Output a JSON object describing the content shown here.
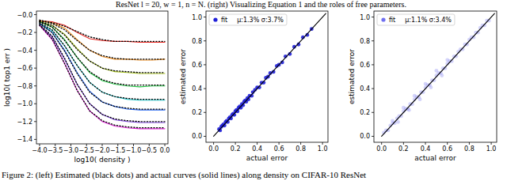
{
  "captions": {
    "top": "ResNet l = 20, w = 1, n = N. (right) Visualizing Equation 1 and the roles of free parameters.",
    "bottom": "Figure 2: (left) Estimated (black dots) and actual curves (solid lines) along density on CIFAR-10 ResNet"
  },
  "chart_data": [
    {
      "type": "line",
      "xlabel": "log10( density )",
      "ylabel": "log10( top1 err )",
      "xlim": [
        -4.1,
        0.1
      ],
      "ylim": [
        -1.45,
        0.04
      ],
      "xticks": [
        {
          "value": -4.0,
          "label": "−4.0"
        },
        {
          "value": -3.5,
          "label": "−3.5"
        },
        {
          "value": -3.0,
          "label": "−3.0"
        },
        {
          "value": -2.5,
          "label": "−2.5"
        },
        {
          "value": -2.0,
          "label": "−2.0"
        },
        {
          "value": -1.5,
          "label": "−1.5"
        },
        {
          "value": -1.0,
          "label": "−1.0"
        },
        {
          "value": -0.5,
          "label": "−0.5"
        },
        {
          "value": 0.0,
          "label": "0.0"
        }
      ],
      "yticks": [
        {
          "value": 0.0,
          "label": "−0.0"
        },
        {
          "value": -0.2,
          "label": "−0.2"
        },
        {
          "value": -0.4,
          "label": "−0.4"
        },
        {
          "value": -0.6,
          "label": "−0.6"
        },
        {
          "value": -0.8,
          "label": "−0.8"
        },
        {
          "value": -1.0,
          "label": "−1.0"
        },
        {
          "value": -1.2,
          "label": "−1.2"
        },
        {
          "value": -1.4,
          "label": "−1.4"
        }
      ],
      "x": [
        -4.0,
        -3.6,
        -3.2,
        -2.8,
        -2.4,
        -2.0,
        -1.6,
        -1.2,
        -0.8,
        -0.4,
        0.0
      ],
      "series": [
        {
          "color": "#e8251f",
          "line_style": "solid",
          "values": [
            -0.07,
            -0.08,
            -0.12,
            -0.2,
            -0.27,
            -0.29,
            -0.3,
            -0.3,
            -0.31,
            -0.31,
            -0.31
          ]
        },
        {
          "color": "#f08c1c",
          "line_style": "solid",
          "values": [
            -0.07,
            -0.09,
            -0.15,
            -0.28,
            -0.4,
            -0.47,
            -0.5,
            -0.5,
            -0.51,
            -0.51,
            -0.5
          ]
        },
        {
          "color": "#a8c41c",
          "line_style": "solid",
          "values": [
            -0.08,
            -0.12,
            -0.22,
            -0.38,
            -0.52,
            -0.6,
            -0.64,
            -0.65,
            -0.66,
            -0.66,
            -0.66
          ]
        },
        {
          "color": "#22c244",
          "line_style": "solid",
          "values": [
            -0.08,
            -0.14,
            -0.28,
            -0.48,
            -0.65,
            -0.74,
            -0.78,
            -0.8,
            -0.81,
            -0.8,
            -0.8
          ]
        },
        {
          "color": "#1cc4c8",
          "line_style": "solid",
          "values": [
            -0.1,
            -0.18,
            -0.35,
            -0.57,
            -0.76,
            -0.87,
            -0.92,
            -0.95,
            -0.96,
            -0.96,
            -0.96
          ]
        },
        {
          "color": "#2464f0",
          "line_style": "solid",
          "values": [
            -0.1,
            -0.2,
            -0.4,
            -0.65,
            -0.86,
            -0.98,
            -1.03,
            -1.06,
            -1.07,
            -1.07,
            -1.07
          ]
        },
        {
          "color": "#7a3ee0",
          "line_style": "solid",
          "values": [
            -0.12,
            -0.25,
            -0.5,
            -0.78,
            -1.0,
            -1.12,
            -1.18,
            -1.2,
            -1.21,
            -1.21,
            -1.21
          ]
        },
        {
          "color": "#e020d8",
          "line_style": "solid",
          "values": [
            -0.12,
            -0.28,
            -0.55,
            -0.85,
            -1.08,
            -1.2,
            -1.25,
            -1.27,
            -1.28,
            -1.28,
            -1.28
          ]
        },
        {
          "color": "#000000",
          "line_style": "dotted",
          "values": [
            -0.06,
            -0.09,
            -0.13,
            -0.19,
            -0.25,
            -0.28,
            -0.3,
            -0.3,
            -0.3,
            -0.3,
            -0.3
          ]
        },
        {
          "color": "#000000",
          "line_style": "dotted",
          "values": [
            -0.07,
            -0.1,
            -0.17,
            -0.29,
            -0.4,
            -0.46,
            -0.49,
            -0.5,
            -0.5,
            -0.5,
            -0.5
          ]
        },
        {
          "color": "#000000",
          "line_style": "dotted",
          "values": [
            -0.08,
            -0.12,
            -0.23,
            -0.39,
            -0.52,
            -0.6,
            -0.63,
            -0.64,
            -0.65,
            -0.65,
            -0.65
          ]
        },
        {
          "color": "#000000",
          "line_style": "dotted",
          "values": [
            -0.08,
            -0.14,
            -0.29,
            -0.48,
            -0.64,
            -0.73,
            -0.77,
            -0.79,
            -0.79,
            -0.79,
            -0.79
          ]
        },
        {
          "color": "#000000",
          "line_style": "dotted",
          "values": [
            -0.09,
            -0.17,
            -0.35,
            -0.57,
            -0.76,
            -0.87,
            -0.92,
            -0.94,
            -0.95,
            -0.95,
            -0.95
          ]
        },
        {
          "color": "#000000",
          "line_style": "dotted",
          "values": [
            -0.1,
            -0.2,
            -0.41,
            -0.66,
            -0.87,
            -0.98,
            -1.03,
            -1.05,
            -1.06,
            -1.06,
            -1.06
          ]
        },
        {
          "color": "#000000",
          "line_style": "dotted",
          "values": [
            -0.11,
            -0.24,
            -0.49,
            -0.78,
            -1.0,
            -1.12,
            -1.17,
            -1.19,
            -1.2,
            -1.2,
            -1.2
          ]
        },
        {
          "color": "#000000",
          "line_style": "dotted",
          "values": [
            -0.12,
            -0.27,
            -0.55,
            -0.85,
            -1.08,
            -1.19,
            -1.24,
            -1.26,
            -1.27,
            -1.27,
            -1.27
          ]
        }
      ]
    },
    {
      "type": "scatter",
      "xlabel": "actual error",
      "ylabel": "estimated error",
      "legend": "upper left",
      "annotations": [
        "μ:1.3% σ:3.7%"
      ],
      "xlim": [
        -0.07,
        1.05
      ],
      "ylim": [
        -0.05,
        1.05
      ],
      "xticks": [
        {
          "value": 0.0,
          "label": "0.0"
        },
        0.2,
        0.4,
        0.6,
        0.8,
        {
          "value": 1.0,
          "label": "1.0"
        }
      ],
      "yticks": [
        {
          "value": 0.0,
          "label": "0.0"
        },
        0.2,
        0.4,
        0.6,
        0.8,
        {
          "value": 1.0,
          "label": "1.0"
        }
      ],
      "series": [
        {
          "name": "fit",
          "type": "scatter",
          "marker": "circle",
          "color": "#1f1fd8",
          "x": [
            0.05,
            0.06,
            0.07,
            0.08,
            0.09,
            0.1,
            0.11,
            0.12,
            0.13,
            0.14,
            0.15,
            0.16,
            0.17,
            0.18,
            0.19,
            0.2,
            0.21,
            0.22,
            0.23,
            0.24,
            0.25,
            0.26,
            0.27,
            0.28,
            0.29,
            0.3,
            0.31,
            0.32,
            0.33,
            0.35,
            0.36,
            0.38,
            0.4,
            0.42,
            0.44,
            0.46,
            0.48,
            0.5,
            0.52,
            0.55,
            0.58,
            0.6,
            0.63,
            0.66,
            0.7,
            0.74,
            0.78,
            0.82,
            0.86,
            0.9
          ],
          "values": [
            0.06,
            0.05,
            0.08,
            0.09,
            0.1,
            0.09,
            0.12,
            0.13,
            0.12,
            0.15,
            0.16,
            0.15,
            0.18,
            0.19,
            0.18,
            0.21,
            0.22,
            0.21,
            0.24,
            0.25,
            0.24,
            0.27,
            0.26,
            0.29,
            0.3,
            0.29,
            0.32,
            0.31,
            0.34,
            0.34,
            0.37,
            0.39,
            0.41,
            0.41,
            0.45,
            0.45,
            0.49,
            0.5,
            0.53,
            0.54,
            0.59,
            0.6,
            0.62,
            0.67,
            0.69,
            0.75,
            0.77,
            0.83,
            0.85,
            0.9
          ]
        },
        {
          "type": "line",
          "color": "#000000",
          "line_style": "solid",
          "x": [
            0.0,
            1.03
          ],
          "values": [
            0.0,
            1.03
          ]
        }
      ]
    },
    {
      "type": "scatter",
      "xlabel": "actual error",
      "ylabel": "estimated error",
      "legend": "upper left",
      "annotations": [
        "μ:1.1% σ:3.4%"
      ],
      "xlim": [
        -0.07,
        1.05
      ],
      "ylim": [
        -0.05,
        1.05
      ],
      "xticks": [
        {
          "value": 0.0,
          "label": "0.0"
        },
        0.2,
        0.4,
        0.6,
        0.8,
        {
          "value": 1.0,
          "label": "1.0"
        }
      ],
      "yticks": [
        {
          "value": 0.0,
          "label": "0.0"
        },
        0.2,
        0.4,
        0.6,
        0.8,
        {
          "value": 1.0,
          "label": "1.0"
        }
      ],
      "series": [
        {
          "name": "fit",
          "type": "scatter",
          "marker": "circle",
          "color": "#6f6ff0",
          "x": [
            0.02,
            0.04,
            0.06,
            0.08,
            0.1,
            0.12,
            0.14,
            0.16,
            0.18,
            0.2,
            0.22,
            0.24,
            0.26,
            0.28,
            0.3,
            0.32,
            0.34,
            0.36,
            0.38,
            0.4,
            0.42,
            0.44,
            0.46,
            0.48,
            0.5,
            0.52,
            0.54,
            0.56,
            0.58,
            0.6,
            0.62,
            0.64,
            0.66,
            0.68,
            0.7,
            0.72,
            0.74,
            0.76,
            0.78,
            0.8,
            0.82,
            0.84,
            0.86,
            0.88,
            0.9,
            0.92,
            0.94,
            0.96,
            0.98,
            0.1,
            0.15,
            0.2,
            0.25,
            0.3,
            0.35,
            0.4,
            0.45,
            0.5,
            0.55,
            0.6
          ],
          "values": [
            0.03,
            0.05,
            0.05,
            0.09,
            0.11,
            0.11,
            0.15,
            0.17,
            0.17,
            0.21,
            0.23,
            0.23,
            0.27,
            0.27,
            0.31,
            0.33,
            0.33,
            0.37,
            0.37,
            0.41,
            0.43,
            0.43,
            0.47,
            0.47,
            0.51,
            0.53,
            0.53,
            0.57,
            0.57,
            0.61,
            0.63,
            0.63,
            0.67,
            0.67,
            0.71,
            0.73,
            0.73,
            0.77,
            0.77,
            0.81,
            0.83,
            0.83,
            0.87,
            0.87,
            0.91,
            0.93,
            0.93,
            0.97,
            0.97,
            0.13,
            0.12,
            0.24,
            0.22,
            0.34,
            0.31,
            0.44,
            0.41,
            0.55,
            0.51,
            0.64
          ]
        },
        {
          "type": "line",
          "color": "#000000",
          "line_style": "solid",
          "x": [
            0.0,
            1.03
          ],
          "values": [
            0.0,
            1.03
          ]
        }
      ]
    }
  ]
}
